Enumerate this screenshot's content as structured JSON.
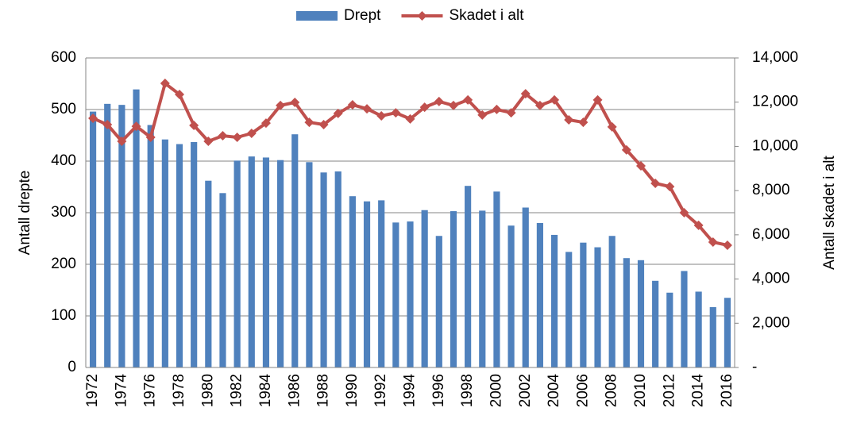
{
  "chart_data": {
    "type": "bar+line",
    "categories": [
      "1972",
      null,
      "1974",
      null,
      "1976",
      null,
      "1978",
      null,
      "1980",
      null,
      "1982",
      null,
      "1984",
      null,
      "1986",
      null,
      "1988",
      null,
      "1990",
      null,
      "1992",
      null,
      "1994",
      null,
      "1996",
      null,
      "1998",
      null,
      "2000",
      null,
      "2002",
      null,
      "2004",
      null,
      "2006",
      null,
      "2008",
      null,
      "2010",
      null,
      "2012",
      null,
      "2014",
      null,
      "2016"
    ],
    "series": [
      {
        "name": "Drept",
        "color": "#4f81bd",
        "type": "bar",
        "values": [
          496,
          511,
          509,
          539,
          470,
          442,
          433,
          437,
          362,
          338,
          401,
          409,
          407,
          402,
          452,
          398,
          378,
          380,
          332,
          322,
          324,
          281,
          283,
          305,
          255,
          303,
          352,
          304,
          341,
          275,
          310,
          280,
          257,
          224,
          242,
          233,
          255,
          212,
          208,
          168,
          145,
          187,
          147,
          117,
          135
        ]
      },
      {
        "name": "Skadet i alt",
        "color": "#c0504d",
        "type": "line",
        "axis": "y2",
        "values": [
          11270,
          10985,
          10230,
          10910,
          10410,
          12850,
          12350,
          10950,
          10230,
          10480,
          10410,
          10590,
          11050,
          11850,
          11990,
          11090,
          10985,
          11490,
          11880,
          11700,
          11380,
          11520,
          11240,
          11770,
          12030,
          11850,
          12100,
          11420,
          11670,
          11520,
          12380,
          11850,
          12100,
          11200,
          11090,
          12100,
          10880,
          9840,
          9120,
          8330,
          8180,
          7000,
          6430,
          5670,
          5530
        ]
      }
    ],
    "ylabel": "Antall drepte",
    "y2label": "Antall skadet i alt",
    "ylim": [
      0,
      600
    ],
    "yticks": [
      0,
      100,
      200,
      300,
      400,
      500,
      600
    ],
    "y2lim": [
      0,
      14000
    ],
    "y2ticks": [
      {
        "value": 0,
        "label": "-"
      },
      {
        "value": 2000,
        "label": "2,000"
      },
      {
        "value": 4000,
        "label": "4,000"
      },
      {
        "value": 6000,
        "label": "6,000"
      },
      {
        "value": 8000,
        "label": "8,000"
      },
      {
        "value": 10000,
        "label": "10,000"
      },
      {
        "value": 12000,
        "label": "12,000"
      },
      {
        "value": 14000,
        "label": "14,000"
      }
    ],
    "grid": true,
    "legend": "top"
  }
}
